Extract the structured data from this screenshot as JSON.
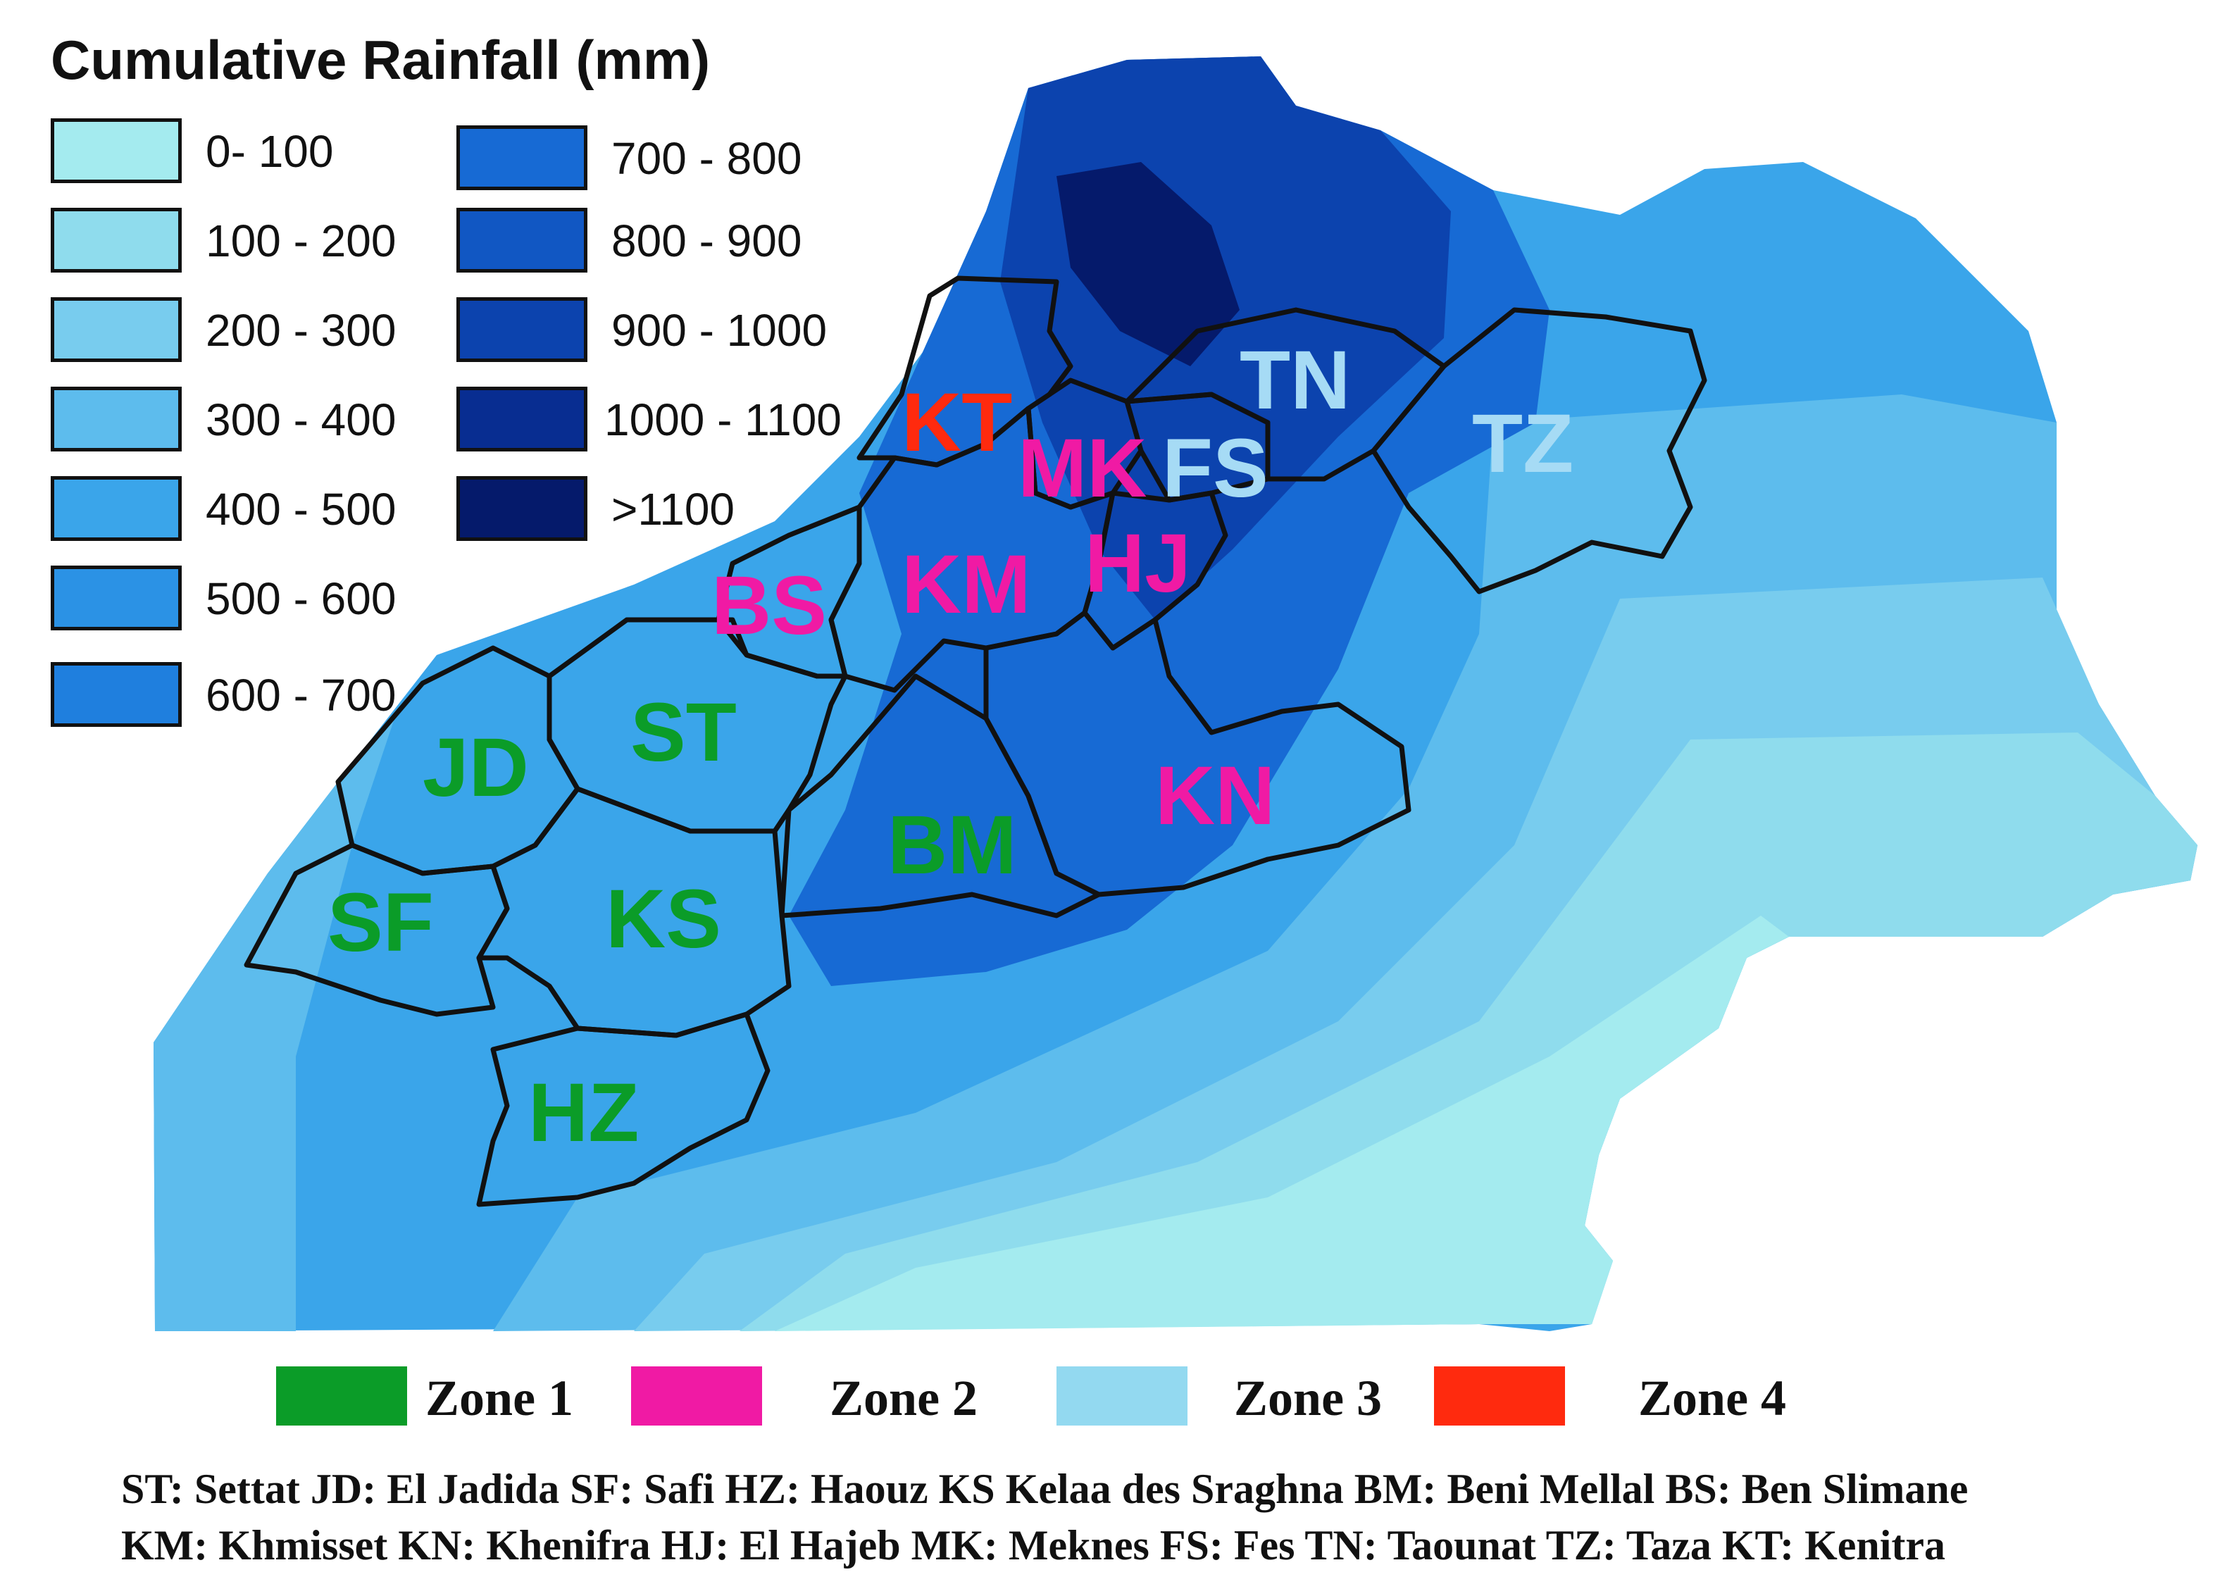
{
  "legend": {
    "title": "Cumulative Rainfall (mm)",
    "classes": [
      {
        "label": "0- 100",
        "color": "#a4ebef"
      },
      {
        "label": "100 - 200",
        "color": "#8fdced"
      },
      {
        "label": "200 - 300",
        "color": "#78ccee"
      },
      {
        "label": "300 - 400",
        "color": "#5dbced"
      },
      {
        "label": "400 - 500",
        "color": "#3aa5ea"
      },
      {
        "label": "500 - 600",
        "color": "#2b92e5"
      },
      {
        "label": "600 - 700",
        "color": "#1f7fde"
      },
      {
        "label": "700 - 800",
        "color": "#176ad4"
      },
      {
        "label": "800 - 900",
        "color": "#1157c3"
      },
      {
        "label": "900 - 1000",
        "color": "#0c43ae"
      },
      {
        "label": "1000 - 1100",
        "color": "#082d91"
      },
      {
        "label": ">1100",
        "color": "#051a6b"
      }
    ]
  },
  "provinces": [
    {
      "code": "ST",
      "zone": "Zone 1"
    },
    {
      "code": "JD",
      "zone": "Zone 1"
    },
    {
      "code": "SF",
      "zone": "Zone 1"
    },
    {
      "code": "KS",
      "zone": "Zone 1"
    },
    {
      "code": "BM",
      "zone": "Zone 1"
    },
    {
      "code": "HZ",
      "zone": "Zone 1"
    },
    {
      "code": "BS",
      "zone": "Zone 2"
    },
    {
      "code": "KM",
      "zone": "Zone 2"
    },
    {
      "code": "MK",
      "zone": "Zone 2"
    },
    {
      "code": "HJ",
      "zone": "Zone 2"
    },
    {
      "code": "KN",
      "zone": "Zone 2"
    },
    {
      "code": "TN",
      "zone": "Zone 3"
    },
    {
      "code": "FS",
      "zone": "Zone 3"
    },
    {
      "code": "TZ",
      "zone": "Zone 3"
    },
    {
      "code": "KT",
      "zone": "Zone 4"
    }
  ],
  "zones": [
    {
      "label": "Zone 1",
      "color": "#0b9c28"
    },
    {
      "label": "Zone 2",
      "color": "#f01aa4"
    },
    {
      "label": "Zone 3",
      "color": "#93d9f0"
    },
    {
      "label": "Zone 4",
      "color": "#ff2a0e"
    }
  ],
  "footnote": {
    "line1": "ST: Settat JD: El Jadida SF: Safi HZ: Haouz KS Kelaa des Sraghna BM: Beni Mellal BS: Ben Slimane",
    "line2": "KM: Khmisset KN: Khenifra HJ: El Hajeb MK: Meknes FS: Fes TN: Taounat TZ: Taza KT: Kenitra"
  }
}
